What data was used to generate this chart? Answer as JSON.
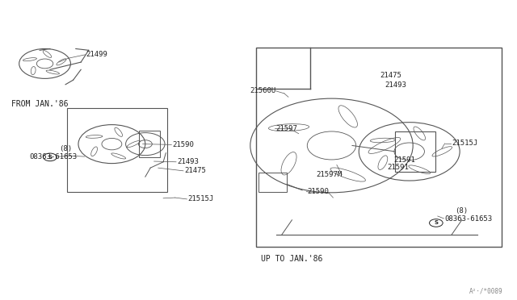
{
  "bg_color": "#ffffff",
  "line_color": "#555555",
  "text_color": "#222222",
  "label_up_to": "UP TO JAN.'86",
  "label_from": "FROM JAN.'86",
  "watermark": "A²·/*0089"
}
